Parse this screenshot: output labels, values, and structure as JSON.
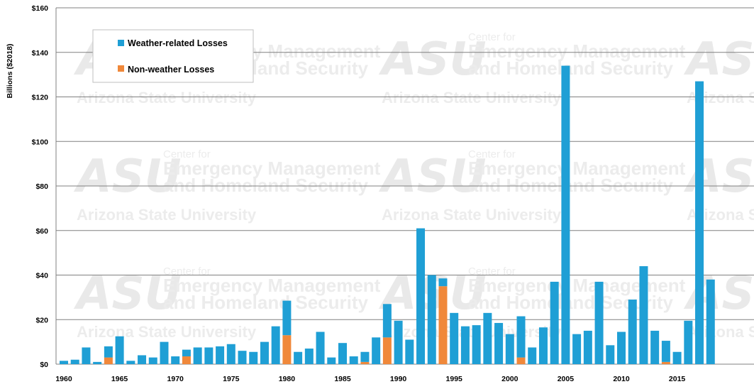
{
  "watermark": {
    "logo": "ASU",
    "line1": "Center for",
    "line2": "Emergency Management",
    "line3": "and Homeland Security",
    "university": "Arizona State University"
  },
  "chart_data": {
    "type": "bar",
    "stacked": true,
    "title": "",
    "xlabel": "",
    "ylabel": "Billions ($2018)",
    "ylim": [
      0,
      160
    ],
    "yticks": [
      0,
      20,
      40,
      60,
      80,
      100,
      120,
      140,
      160
    ],
    "ytick_labels": [
      "$0",
      "$20",
      "$40",
      "$60",
      "$80",
      "$100",
      "$120",
      "$140",
      "$160"
    ],
    "xtick_labels": [
      "1960",
      "1965",
      "1970",
      "1975",
      "1980",
      "1985",
      "1990",
      "1995",
      "2000",
      "2005",
      "2010",
      "2015"
    ],
    "grid": true,
    "legend_position": "top-left",
    "colors": {
      "weather": "#1f9fd5",
      "nonweather": "#f0883a",
      "grid": "#808080"
    },
    "categories": [
      1960,
      1961,
      1962,
      1963,
      1964,
      1965,
      1966,
      1967,
      1968,
      1969,
      1970,
      1971,
      1972,
      1973,
      1974,
      1975,
      1976,
      1977,
      1978,
      1979,
      1980,
      1981,
      1982,
      1983,
      1984,
      1985,
      1986,
      1987,
      1988,
      1989,
      1990,
      1991,
      1992,
      1993,
      1994,
      1995,
      1996,
      1997,
      1998,
      1999,
      2000,
      2001,
      2002,
      2003,
      2004,
      2005,
      2006,
      2007,
      2008,
      2009,
      2010,
      2011,
      2012,
      2013,
      2014,
      2015,
      2016,
      2017,
      2018
    ],
    "series": [
      {
        "name": "Non-weather Losses",
        "values": [
          0,
          0,
          0,
          0,
          3,
          0,
          0,
          0,
          0,
          0,
          0,
          3.5,
          0,
          0,
          0,
          0,
          0,
          0,
          0,
          0,
          13,
          0,
          0,
          0,
          0,
          0,
          0,
          1,
          0,
          12,
          0,
          0,
          0,
          0,
          35,
          0,
          0,
          0,
          0,
          0,
          0,
          3,
          0,
          0,
          0,
          0,
          0,
          0,
          0,
          0,
          0,
          0,
          0,
          0,
          1,
          0,
          0,
          0,
          0
        ]
      },
      {
        "name": "Weather-related Losses",
        "values": [
          1.5,
          2,
          7.5,
          1,
          5,
          12.5,
          1.5,
          4,
          3,
          10,
          3.5,
          3,
          7.5,
          7.5,
          8,
          9,
          6,
          5.5,
          10,
          17,
          15.5,
          5.5,
          7,
          14.5,
          3,
          9.5,
          3.5,
          4.5,
          12,
          15,
          19.5,
          11,
          61,
          40,
          3.5,
          23,
          17,
          17.5,
          23,
          18.5,
          13.5,
          18.5,
          7.5,
          16.5,
          37,
          134,
          13.5,
          15,
          37,
          8.5,
          14.5,
          29,
          44,
          15,
          9.5,
          5.5,
          19.5,
          127,
          38
        ]
      }
    ]
  }
}
